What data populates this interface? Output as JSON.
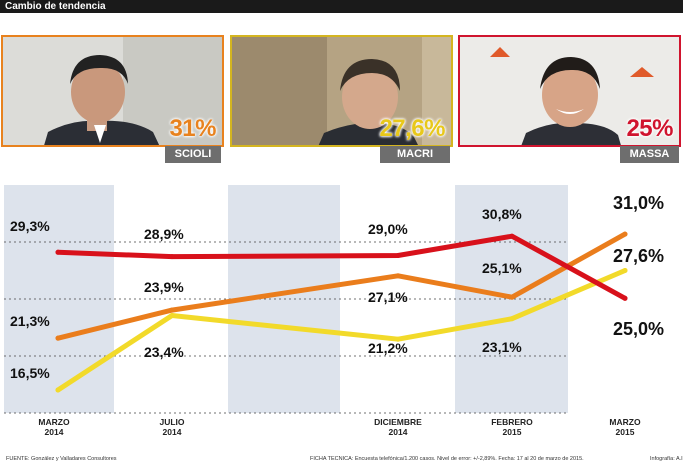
{
  "header": {
    "title": "Cambio de tendencia"
  },
  "candidates": [
    {
      "name": "SCIOLI",
      "pct": "31%",
      "color": "#e8821e",
      "pct_color": "#e8821e"
    },
    {
      "name": "MACRI",
      "pct": "27,6%",
      "color": "#d4b520",
      "pct_color": "#e8c81a"
    },
    {
      "name": "MASSA",
      "pct": "25%",
      "color": "#d0142e",
      "pct_color": "#d0142e"
    }
  ],
  "chart_data": {
    "type": "line",
    "x": [
      "MARZO 2014",
      "JULIO 2014",
      "DICIEMBRE 2014",
      "FEBRERO 2015",
      "MARZO 2015"
    ],
    "series": [
      {
        "name": "Massa",
        "color": "#d8111b",
        "values": [
          29.3,
          28.9,
          29.0,
          30.8,
          25.0
        ],
        "labels": [
          "29,3%",
          "28,9%",
          "29,0%",
          "30,8%",
          "25,0%"
        ]
      },
      {
        "name": "Scioli",
        "color": "#ea7d1c",
        "values": [
          21.3,
          23.9,
          27.1,
          25.1,
          31.0
        ],
        "labels": [
          "21,3%",
          "23,9%",
          "27,1%",
          "25,1%",
          "31,0%"
        ]
      },
      {
        "name": "Macri",
        "color": "#f2da2a",
        "values": [
          16.5,
          23.4,
          21.2,
          23.1,
          27.6
        ],
        "labels": [
          "16,5%",
          "23,4%",
          "21,2%",
          "23,1%",
          "27,6%"
        ]
      }
    ],
    "grid": true
  },
  "footer": {
    "source": "FUENTE: González y Valladares Consultores",
    "tech": "FICHA TECNICA: Encuesta telefónica/1.200 casos. Nivel de error: +/-2,89%. Fecha: 17 al 20 de marzo de 2015.",
    "credit": "Infografía: A.I"
  }
}
